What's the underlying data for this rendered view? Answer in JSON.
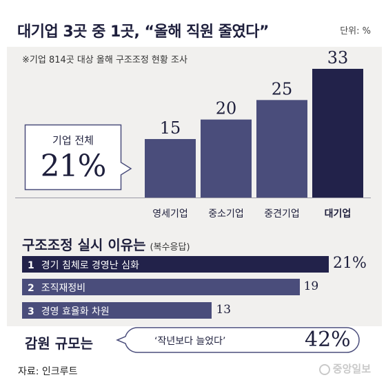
{
  "header": {
    "title": "대기업 3곳 중 1곳, “올해 직원 줄였다”",
    "unit": "단위: %"
  },
  "survey_note": "※기업 814곳 대상 올해 구조조정 현황 조사",
  "overall": {
    "label": "기업 전체",
    "value": "21%"
  },
  "reasons": {
    "title": "구조조정 실시 이유는",
    "subtitle": "(복수응답)"
  },
  "cut_size": {
    "title": "감원 규모는",
    "quote": "‘작년보다 늘었다’",
    "value": "42%"
  },
  "footer": {
    "source": "자료: 인크루트",
    "brand": "중앙일보"
  },
  "colors": {
    "navy_dark": "#22224a",
    "navy_mid": "#4a4d7b",
    "panel_bg": "#f1f0ee"
  },
  "chart_data": [
    {
      "type": "bar",
      "categories": [
        "영세기업",
        "중소기업",
        "중견기업",
        "대기업"
      ],
      "values": [
        15,
        20,
        25,
        33
      ],
      "value_labels": [
        "15",
        "20",
        "25",
        "33"
      ],
      "highlight": "대기업",
      "ylim": [
        0,
        33
      ]
    },
    {
      "type": "bar",
      "orientation": "horizontal",
      "title": "구조조정 실시 이유는",
      "subtitle": "(복수응답)",
      "items": [
        {
          "rank": "1",
          "label": "경기 침체로 경영난 심화",
          "value": 21,
          "value_label": "21%"
        },
        {
          "rank": "2",
          "label": "조직재정비",
          "value": 19,
          "value_label": "19"
        },
        {
          "rank": "3",
          "label": "경영 효율화 차원",
          "value": 13,
          "value_label": "13"
        }
      ],
      "xlim": [
        0,
        21
      ]
    }
  ]
}
